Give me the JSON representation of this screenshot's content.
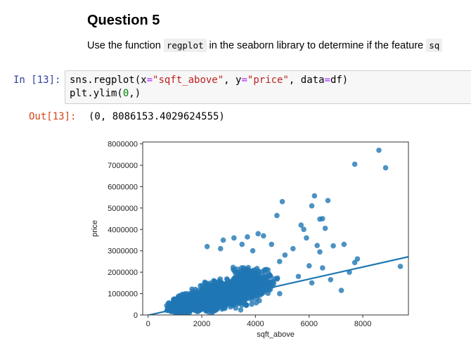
{
  "markdown": {
    "heading": "Question 5",
    "text_before": "Use the function ",
    "inline_code_1": "regplot",
    "text_middle": " in the seaborn library to determine if the feature ",
    "inline_code_2": "sq"
  },
  "cell": {
    "in_prompt": "In [13]:",
    "code_line1": {
      "a": "sns.regplot(x",
      "b": "=",
      "c": "\"sqft_above\"",
      "d": ", y",
      "e": "=",
      "f": "\"price\"",
      "g": ", data",
      "h": "=",
      "i": "df)"
    },
    "code_line2": {
      "a": "plt.ylim(",
      "b": "0",
      "c": ",)"
    },
    "out_prompt": "Out[13]:",
    "output": "(0, 8086153.4029624555)"
  },
  "colors": {
    "points": "#1f77b4",
    "line": "#1f77b4",
    "in_prompt": "#303f9f",
    "out_prompt": "#d84315"
  },
  "chart_data": {
    "type": "scatter",
    "xlabel": "sqft_above",
    "ylabel": "price",
    "xlim": [
      -200,
      9700
    ],
    "ylim": [
      0,
      8086153.4029624555
    ],
    "xticks": [
      0,
      2000,
      4000,
      6000,
      8000
    ],
    "yticks": [
      0,
      1000000,
      2000000,
      3000000,
      4000000,
      5000000,
      6000000,
      7000000,
      8000000
    ],
    "grid": false,
    "regression_line": {
      "x": [
        -200,
        9700
      ],
      "y": [
        -70000,
        2720000
      ]
    },
    "points": [
      [
        8600,
        7700000
      ],
      [
        7700,
        7050000
      ],
      [
        8850,
        6880000
      ],
      [
        6200,
        5570000
      ],
      [
        6700,
        5350000
      ],
      [
        5000,
        5300000
      ],
      [
        6100,
        5100000
      ],
      [
        6500,
        4500000
      ],
      [
        6400,
        4480000
      ],
      [
        4800,
        4650000
      ],
      [
        5700,
        4200000
      ],
      [
        5800,
        4000000
      ],
      [
        6600,
        4050000
      ],
      [
        5900,
        3600000
      ],
      [
        6300,
        3250000
      ],
      [
        6900,
        3230000
      ],
      [
        6400,
        2950000
      ],
      [
        7300,
        3300000
      ],
      [
        9400,
        2270000
      ],
      [
        7500,
        2000000
      ],
      [
        7700,
        2450000
      ],
      [
        7800,
        2620000
      ],
      [
        6000,
        2300000
      ],
      [
        6500,
        2200000
      ],
      [
        7200,
        1150000
      ],
      [
        6800,
        1650000
      ],
      [
        4300,
        3700000
      ],
      [
        4600,
        3300000
      ],
      [
        3700,
        3650000
      ],
      [
        3200,
        3600000
      ],
      [
        2800,
        3500000
      ],
      [
        4100,
        3800000
      ],
      [
        2200,
        3200000
      ],
      [
        3500,
        3300000
      ],
      [
        2700,
        3100000
      ],
      [
        3900,
        3000000
      ],
      [
        5400,
        3100000
      ],
      [
        5100,
        2800000
      ],
      [
        4900,
        2500000
      ],
      [
        5600,
        1800000
      ],
      [
        6100,
        1500000
      ]
    ],
    "dense_region": [
      {
        "x": 1800,
        "y": 600000,
        "sx": 900,
        "sy": 400000,
        "n": 900
      },
      {
        "x": 2800,
        "y": 1000000,
        "sx": 1000,
        "sy": 600000,
        "n": 900
      },
      {
        "x": 3800,
        "y": 1500000,
        "sx": 900,
        "sy": 700000,
        "n": 500
      },
      {
        "x": 1200,
        "y": 300000,
        "sx": 500,
        "sy": 200000,
        "n": 400
      }
    ]
  }
}
